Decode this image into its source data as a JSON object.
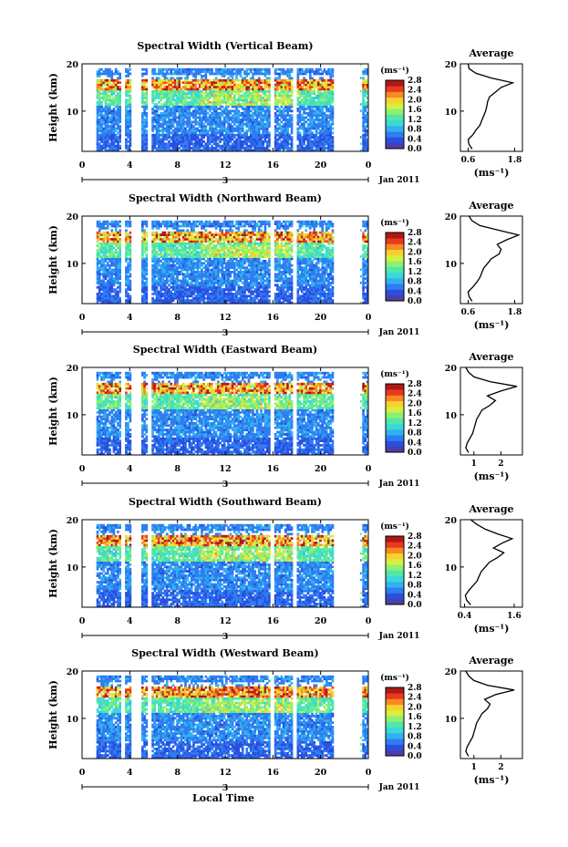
{
  "figure": {
    "x_axis_label": "Local Time",
    "date_label": "Jan 2011",
    "day_label": "3",
    "units_label": "(ms⁻¹)",
    "avg_title": "Average",
    "y_label": "Height (km)"
  },
  "colorbar": {
    "ticks": [
      "0.0",
      "0.4",
      "0.8",
      "1.2",
      "1.6",
      "2.0",
      "2.4",
      "2.8"
    ],
    "colors": [
      "#4b3fa6",
      "#2a4fe0",
      "#2f7df0",
      "#33b0f0",
      "#3cd8d8",
      "#4fe8a8",
      "#8ef070",
      "#d6f040",
      "#f8d030",
      "#f88a20",
      "#e83a20",
      "#b01818"
    ]
  },
  "chart_data": [
    {
      "type": "heatmap",
      "title": "Spectral Width (Vertical Beam)",
      "xlabel": "Local Time",
      "ylabel": "Height (km)",
      "x_ticks": [
        "0",
        "4",
        "8",
        "12",
        "16",
        "20",
        "0"
      ],
      "y_ticks": [
        "10",
        "20"
      ],
      "xlim": [
        0,
        24
      ],
      "ylim": [
        1.5,
        20
      ],
      "colorbar_range": [
        0.0,
        2.8
      ],
      "gaps_hours": [
        [
          3.2,
          3.6
        ],
        [
          4.1,
          4.9
        ],
        [
          5.5,
          5.9
        ],
        [
          15.8,
          16.2
        ],
        [
          17.7,
          18.0
        ],
        [
          21.1,
          23.5
        ]
      ],
      "average_profile": {
        "title": "Average",
        "xlabel": "(ms⁻¹)",
        "x_ticks": [
          "0.6",
          "1.8"
        ],
        "x_tick_values": [
          0.6,
          1.8
        ],
        "xlim": [
          0.4,
          2.0
        ],
        "heights": [
          2,
          3,
          4,
          5,
          6,
          7,
          8,
          9,
          10,
          11,
          12,
          13,
          14,
          15,
          16,
          17,
          18,
          19,
          20
        ],
        "values": [
          0.7,
          0.62,
          0.6,
          0.72,
          0.8,
          0.9,
          0.95,
          1.0,
          1.05,
          1.08,
          1.1,
          1.15,
          1.3,
          1.45,
          1.75,
          1.2,
          0.8,
          0.62,
          0.6
        ]
      }
    },
    {
      "type": "heatmap",
      "title": "Spectral Width (Northward Beam)",
      "xlabel": "Local Time",
      "ylabel": "Height (km)",
      "x_ticks": [
        "0",
        "4",
        "8",
        "12",
        "16",
        "20",
        "0"
      ],
      "y_ticks": [
        "10",
        "20"
      ],
      "xlim": [
        0,
        24
      ],
      "ylim": [
        1.5,
        20
      ],
      "colorbar_range": [
        0.0,
        2.8
      ],
      "gaps_hours": [
        [
          3.2,
          3.6
        ],
        [
          4.1,
          4.9
        ],
        [
          5.5,
          5.9
        ],
        [
          15.8,
          16.2
        ],
        [
          17.7,
          18.0
        ],
        [
          21.1,
          23.5
        ]
      ],
      "average_profile": {
        "title": "Average",
        "xlabel": "(ms⁻¹)",
        "x_ticks": [
          "0.6",
          "1.8"
        ],
        "x_tick_values": [
          0.6,
          1.8
        ],
        "xlim": [
          0.4,
          2.0
        ],
        "heights": [
          2,
          3,
          4,
          5,
          6,
          7,
          8,
          9,
          10,
          11,
          12,
          13,
          14,
          15,
          16,
          17,
          18,
          19,
          20
        ],
        "values": [
          0.7,
          0.62,
          0.6,
          0.72,
          0.82,
          0.9,
          0.95,
          1.0,
          1.1,
          1.2,
          1.4,
          1.45,
          1.35,
          1.6,
          1.9,
          1.4,
          0.9,
          0.7,
          0.62
        ]
      }
    },
    {
      "type": "heatmap",
      "title": "Spectral Width (Eastward Beam)",
      "xlabel": "Local Time",
      "ylabel": "Height (km)",
      "x_ticks": [
        "0",
        "4",
        "8",
        "12",
        "16",
        "20",
        "0"
      ],
      "y_ticks": [
        "10",
        "20"
      ],
      "xlim": [
        0,
        24
      ],
      "ylim": [
        1.5,
        20
      ],
      "colorbar_range": [
        0.0,
        2.8
      ],
      "gaps_hours": [
        [
          3.2,
          3.6
        ],
        [
          4.1,
          4.9
        ],
        [
          5.5,
          5.9
        ],
        [
          15.8,
          16.2
        ],
        [
          17.7,
          18.0
        ],
        [
          21.1,
          23.5
        ]
      ],
      "average_profile": {
        "title": "Average",
        "xlabel": "(ms⁻¹)",
        "x_ticks": [
          "1",
          "2"
        ],
        "x_tick_values": [
          1,
          2
        ],
        "xlim": [
          0.5,
          2.8
        ],
        "heights": [
          2,
          3,
          4,
          5,
          6,
          7,
          8,
          9,
          10,
          11,
          12,
          13,
          14,
          15,
          16,
          17,
          18,
          19,
          20
        ],
        "values": [
          0.8,
          0.7,
          0.75,
          0.85,
          0.95,
          1.0,
          1.05,
          1.1,
          1.2,
          1.3,
          1.6,
          1.8,
          1.5,
          2.0,
          2.6,
          1.6,
          1.0,
          0.8,
          0.7
        ]
      }
    },
    {
      "type": "heatmap",
      "title": "Spectral Width (Southward Beam)",
      "xlabel": "Local Time",
      "ylabel": "Height (km)",
      "x_ticks": [
        "0",
        "4",
        "8",
        "12",
        "16",
        "20",
        "0"
      ],
      "y_ticks": [
        "10",
        "20"
      ],
      "xlim": [
        0,
        24
      ],
      "ylim": [
        1.5,
        20
      ],
      "colorbar_range": [
        0.0,
        2.8
      ],
      "gaps_hours": [
        [
          3.2,
          3.6
        ],
        [
          4.1,
          4.9
        ],
        [
          5.5,
          5.9
        ],
        [
          15.8,
          16.2
        ],
        [
          17.7,
          18.0
        ],
        [
          21.1,
          23.5
        ]
      ],
      "average_profile": {
        "title": "Average",
        "xlabel": "(ms⁻¹)",
        "x_ticks": [
          "0.4",
          "1.6"
        ],
        "x_tick_values": [
          0.4,
          1.6
        ],
        "xlim": [
          0.3,
          1.8
        ],
        "heights": [
          2,
          3,
          4,
          5,
          6,
          7,
          8,
          9,
          10,
          11,
          12,
          13,
          14,
          15,
          16,
          17,
          18,
          19,
          20
        ],
        "values": [
          0.55,
          0.45,
          0.42,
          0.5,
          0.6,
          0.7,
          0.75,
          0.8,
          0.9,
          1.0,
          1.2,
          1.35,
          1.1,
          1.3,
          1.55,
          1.2,
          0.9,
          0.7,
          0.55
        ]
      }
    },
    {
      "type": "heatmap",
      "title": "Spectral Width (Westward Beam)",
      "xlabel": "Local Time",
      "ylabel": "Height (km)",
      "x_ticks": [
        "0",
        "4",
        "8",
        "12",
        "16",
        "20",
        "0"
      ],
      "y_ticks": [
        "10",
        "20"
      ],
      "xlim": [
        0,
        24
      ],
      "ylim": [
        1.5,
        20
      ],
      "colorbar_range": [
        0.0,
        2.8
      ],
      "gaps_hours": [
        [
          3.2,
          3.6
        ],
        [
          4.1,
          4.9
        ],
        [
          5.5,
          5.9
        ],
        [
          15.8,
          16.2
        ],
        [
          17.7,
          18.0
        ],
        [
          21.1,
          23.5
        ]
      ],
      "average_profile": {
        "title": "Average",
        "xlabel": "(ms⁻¹)",
        "x_ticks": [
          "1",
          "2"
        ],
        "x_tick_values": [
          1,
          2
        ],
        "xlim": [
          0.5,
          2.8
        ],
        "heights": [
          2,
          3,
          4,
          5,
          6,
          7,
          8,
          9,
          10,
          11,
          12,
          13,
          14,
          15,
          16,
          17,
          18,
          19,
          20
        ],
        "values": [
          0.8,
          0.7,
          0.75,
          0.85,
          0.95,
          1.0,
          1.05,
          1.1,
          1.2,
          1.3,
          1.5,
          1.6,
          1.4,
          1.8,
          2.5,
          1.5,
          1.0,
          0.8,
          0.7
        ]
      }
    }
  ]
}
